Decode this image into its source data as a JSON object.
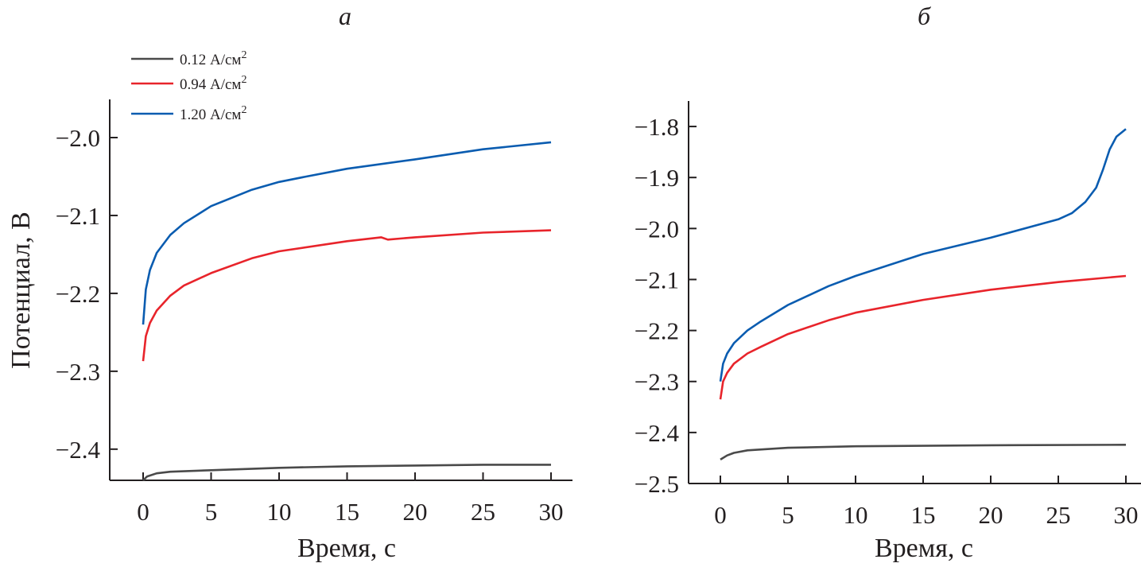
{
  "chart_data": [
    {
      "type": "line",
      "title": "а",
      "xlabel": "Время, с",
      "ylabel": "Потенциал, В",
      "xlim": [
        -2.5,
        31.5
      ],
      "ylim": [
        -2.44,
        -1.951
      ],
      "xticks": [
        0,
        5,
        10,
        15,
        20,
        25,
        30
      ],
      "yticks": [
        -2.4,
        -2.3,
        -2.2,
        -2.1,
        -2.0
      ],
      "ytick_labels": [
        "−2.4",
        "−2.3",
        "−2.2",
        "−2.1",
        "−2.0"
      ],
      "grid": false,
      "legend": "top-left",
      "series": [
        {
          "name": "0.12 А/см",
          "sup": "2",
          "color": "#4a4a4a",
          "x": [
            0,
            0.3,
            1,
            2,
            5,
            10,
            15,
            20,
            25,
            30
          ],
          "y": [
            -2.44,
            -2.435,
            -2.431,
            -2.429,
            -2.427,
            -2.424,
            -2.422,
            -2.421,
            -2.42,
            -2.42
          ]
        },
        {
          "name": "0.94 А/см",
          "sup": "2",
          "color": "#e8242b",
          "x": [
            0,
            0.2,
            0.5,
            1,
            2,
            3,
            5,
            8,
            10,
            15,
            17.5,
            18,
            20,
            25,
            30
          ],
          "y": [
            -2.287,
            -2.255,
            -2.238,
            -2.222,
            -2.203,
            -2.19,
            -2.174,
            -2.155,
            -2.146,
            -2.133,
            -2.128,
            -2.131,
            -2.128,
            -2.122,
            -2.119
          ]
        },
        {
          "name": "1.20 А/см",
          "sup": "2",
          "color": "#0a5cb0",
          "x": [
            0,
            0.2,
            0.5,
            1,
            2,
            3,
            5,
            8,
            10,
            12,
            15,
            20,
            25,
            30
          ],
          "y": [
            -2.24,
            -2.195,
            -2.17,
            -2.148,
            -2.125,
            -2.11,
            -2.088,
            -2.067,
            -2.057,
            -2.05,
            -2.04,
            -2.028,
            -2.015,
            -2.006
          ]
        }
      ]
    },
    {
      "type": "line",
      "title": "б",
      "xlabel": "Время, с",
      "ylabel": "",
      "xlim": [
        -2.5,
        31.5
      ],
      "ylim": [
        -2.5,
        -1.75
      ],
      "xticks": [
        0,
        5,
        10,
        15,
        20,
        25,
        30
      ],
      "yticks": [
        -2.5,
        -2.4,
        -2.3,
        -2.2,
        -2.1,
        -2.0,
        -1.9,
        -1.8
      ],
      "ytick_labels": [
        "−2.5",
        "−2.4",
        "−2.3",
        "−2.2",
        "−2.1",
        "−2.0",
        "−1.9",
        "−1.8"
      ],
      "grid": false,
      "series": [
        {
          "name": "0.12 А/см2",
          "color": "#4a4a4a",
          "x": [
            0,
            0.5,
            1,
            2,
            5,
            10,
            20,
            30
          ],
          "y": [
            -2.453,
            -2.445,
            -2.44,
            -2.435,
            -2.43,
            -2.427,
            -2.425,
            -2.424
          ]
        },
        {
          "name": "0.94 А/см2",
          "color": "#e8242b",
          "x": [
            0,
            0.2,
            0.5,
            1,
            2,
            3,
            5,
            8,
            10,
            15,
            20,
            25,
            30
          ],
          "y": [
            -2.335,
            -2.3,
            -2.283,
            -2.265,
            -2.245,
            -2.232,
            -2.207,
            -2.18,
            -2.165,
            -2.14,
            -2.12,
            -2.105,
            -2.093
          ]
        },
        {
          "name": "1.20 А/см2",
          "color": "#0a5cb0",
          "x": [
            0,
            0.2,
            0.5,
            1,
            2,
            3,
            5,
            8,
            10,
            15,
            20,
            25,
            26,
            27,
            27.8,
            28.3,
            28.8,
            29.3,
            30
          ],
          "y": [
            -2.3,
            -2.265,
            -2.245,
            -2.225,
            -2.2,
            -2.182,
            -2.15,
            -2.113,
            -2.093,
            -2.05,
            -2.018,
            -1.982,
            -1.97,
            -1.948,
            -1.92,
            -1.885,
            -1.845,
            -1.82,
            -1.805
          ]
        }
      ]
    }
  ]
}
